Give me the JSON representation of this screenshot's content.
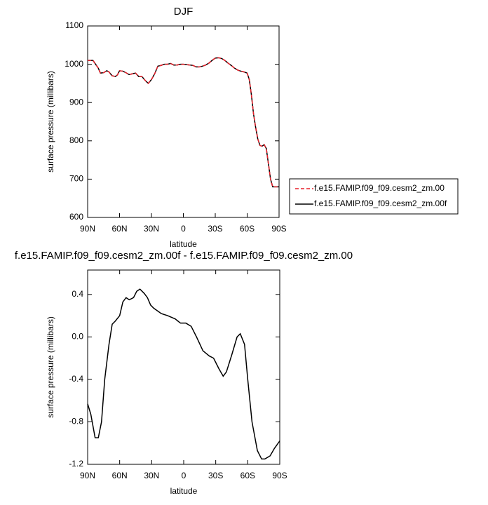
{
  "chart_data": [
    {
      "type": "line",
      "title": "DJF",
      "xlabel": "latitude",
      "ylabel": "surface pressure (millibars)",
      "x": [
        90,
        85,
        80,
        78,
        75,
        72,
        70,
        67,
        64,
        62,
        60,
        57,
        54,
        51,
        48,
        45,
        42,
        39,
        36,
        33,
        30,
        27,
        24,
        21,
        18,
        15,
        12,
        9,
        6,
        3,
        0,
        -3,
        -6,
        -9,
        -12,
        -15,
        -18,
        -21,
        -24,
        -27,
        -30,
        -33,
        -36,
        -39,
        -42,
        -45,
        -48,
        -51,
        -54,
        -57,
        -60,
        -62,
        -64,
        -66,
        -68,
        -70,
        -72,
        -74,
        -76,
        -78,
        -80,
        -82,
        -84,
        -87,
        -90
      ],
      "series": [
        {
          "name": "f.e15.FAMIP.f09_f09.cesm2_zm.00",
          "color": "#e8202a",
          "line_style": "dashed",
          "values": [
            1010,
            1010,
            990,
            977,
            978,
            983,
            980,
            970,
            968,
            972,
            983,
            982,
            978,
            973,
            975,
            977,
            968,
            968,
            958,
            950,
            960,
            975,
            995,
            997,
            1000,
            1000,
            1002,
            998,
            998,
            1000,
            1000,
            999,
            998,
            997,
            993,
            993,
            995,
            998,
            1003,
            1010,
            1016,
            1017,
            1015,
            1010,
            1003,
            997,
            990,
            985,
            982,
            980,
            977,
            960,
            920,
            870,
            835,
            805,
            788,
            786,
            790,
            780,
            740,
            700,
            680,
            680,
            680
          ]
        },
        {
          "name": "f.e15.FAMIP.f09_f09.cesm2_zm.00f",
          "color": "#000000",
          "line_style": "solid",
          "values": [
            1010,
            1010,
            990,
            977,
            978,
            983,
            980,
            970,
            968,
            972,
            983,
            982,
            978,
            973,
            975,
            977,
            968,
            968,
            958,
            950,
            960,
            975,
            995,
            997,
            1000,
            1000,
            1002,
            998,
            998,
            1000,
            1000,
            999,
            998,
            997,
            993,
            993,
            995,
            998,
            1003,
            1010,
            1016,
            1017,
            1015,
            1010,
            1003,
            997,
            990,
            985,
            982,
            980,
            977,
            960,
            920,
            870,
            835,
            805,
            788,
            786,
            790,
            780,
            740,
            700,
            680,
            680,
            680
          ]
        }
      ],
      "xlim": [
        90,
        -90
      ],
      "xticks": [
        {
          "value": 90,
          "label": "90N"
        },
        {
          "value": 60,
          "label": "60N"
        },
        {
          "value": 30,
          "label": "30N"
        },
        0,
        {
          "value": -30,
          "label": "30S"
        },
        {
          "value": -60,
          "label": "60S"
        },
        {
          "value": -90,
          "label": "90S"
        }
      ],
      "ylim": [
        600,
        1100
      ],
      "yticks": [
        600,
        700,
        800,
        900,
        1000,
        1100
      ],
      "legend": "right"
    },
    {
      "type": "line",
      "title": "f.e15.FAMIP.f09_f09.cesm2_zm.00f - f.e15.FAMIP.f09_f09.cesm2_zm.00",
      "xlabel": "latitude",
      "ylabel": "surface pressure (millibars)",
      "x": [
        90,
        87,
        83,
        80,
        77,
        74,
        70,
        67,
        64,
        60,
        57,
        54,
        51,
        47,
        44,
        41,
        37,
        34,
        31,
        28,
        21,
        15,
        8,
        3,
        -2,
        -7,
        -12,
        -18,
        -24,
        -28,
        -33,
        -37,
        -40,
        -45,
        -50,
        -53,
        -57,
        -60,
        -64,
        -69,
        -73,
        -76,
        -81,
        -85,
        -90
      ],
      "series": [
        {
          "color": "#000000",
          "line_style": "solid",
          "values": [
            -0.63,
            -0.73,
            -0.95,
            -0.95,
            -0.8,
            -0.4,
            -0.07,
            0.12,
            0.15,
            0.2,
            0.33,
            0.37,
            0.35,
            0.37,
            0.43,
            0.45,
            0.41,
            0.37,
            0.3,
            0.27,
            0.22,
            0.2,
            0.17,
            0.13,
            0.13,
            0.1,
            0,
            -0.13,
            -0.18,
            -0.2,
            -0.3,
            -0.37,
            -0.33,
            -0.17,
            0,
            0.03,
            -0.07,
            -0.4,
            -0.8,
            -1.07,
            -1.15,
            -1.15,
            -1.12,
            -1.05,
            -0.98
          ]
        }
      ],
      "xlim": [
        90,
        -90
      ],
      "xticks": [
        {
          "value": 90,
          "label": "90N"
        },
        {
          "value": 60,
          "label": "60N"
        },
        {
          "value": 30,
          "label": "30N"
        },
        0,
        {
          "value": -30,
          "label": "30S"
        },
        {
          "value": -60,
          "label": "60S"
        },
        {
          "value": -90,
          "label": "90S"
        }
      ],
      "ylim": [
        -1.2,
        0.63
      ],
      "yticks": [
        -1.2,
        -0.8,
        -0.4,
        {
          "value": 0,
          "label": "0.0"
        },
        0.4
      ]
    }
  ]
}
